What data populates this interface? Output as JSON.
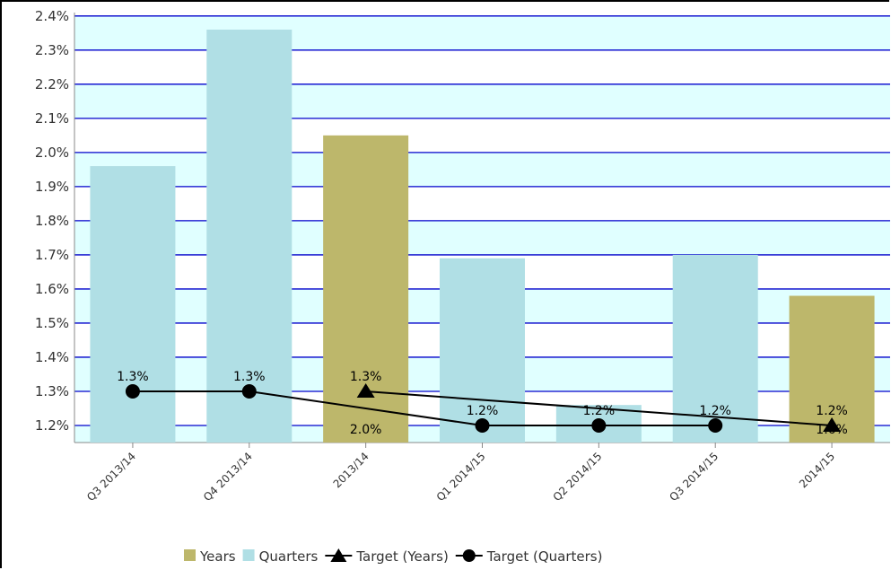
{
  "chart_data": {
    "type": "bar",
    "title": "",
    "xlabel": "",
    "ylabel": "",
    "categories": [
      "Q3 2013/14",
      "Q4 2013/14",
      "2013/14",
      "Q1 2014/15",
      "Q2 2014/15",
      "Q3 2014/15",
      "2014/15"
    ],
    "ylim": [
      1.15,
      2.41
    ],
    "yticks": [
      1.2,
      1.3,
      1.4,
      1.5,
      1.6,
      1.7,
      1.8,
      1.9,
      2.0,
      2.1,
      2.2,
      2.3,
      2.4
    ],
    "ytick_labels": [
      "1.2%",
      "1.3%",
      "1.4%",
      "1.5%",
      "1.6%",
      "1.7%",
      "1.8%",
      "1.9%",
      "2.0%",
      "2.1%",
      "2.2%",
      "2.3%",
      "2.4%"
    ],
    "grid": true,
    "legend_position": "bottom",
    "series": [
      {
        "name": "Years",
        "type": "bar",
        "color": "#bdb76b",
        "values": [
          null,
          null,
          2.05,
          null,
          null,
          null,
          1.58
        ],
        "data_labels": [
          null,
          null,
          "2.0%",
          null,
          null,
          null,
          "1.6%"
        ]
      },
      {
        "name": "Quarters",
        "type": "bar",
        "color": "#b0dfe5",
        "values": [
          1.96,
          2.36,
          null,
          1.69,
          1.26,
          1.7,
          null
        ],
        "data_labels": [
          null,
          null,
          null,
          null,
          null,
          null,
          null
        ]
      },
      {
        "name": "Target (Years)",
        "type": "line",
        "marker": "triangle",
        "color": "#000000",
        "values": [
          null,
          null,
          1.3,
          null,
          null,
          null,
          1.2
        ],
        "data_labels": [
          null,
          null,
          "1.3%",
          null,
          null,
          null,
          "1.2%"
        ]
      },
      {
        "name": "Target (Quarters)",
        "type": "line",
        "marker": "circle",
        "color": "#000000",
        "values": [
          1.3,
          1.3,
          null,
          1.2,
          1.2,
          1.2,
          null
        ],
        "data_labels": [
          "1.3%",
          "1.3%",
          null,
          "1.2%",
          "1.2%",
          "1.2%",
          null
        ]
      }
    ]
  }
}
